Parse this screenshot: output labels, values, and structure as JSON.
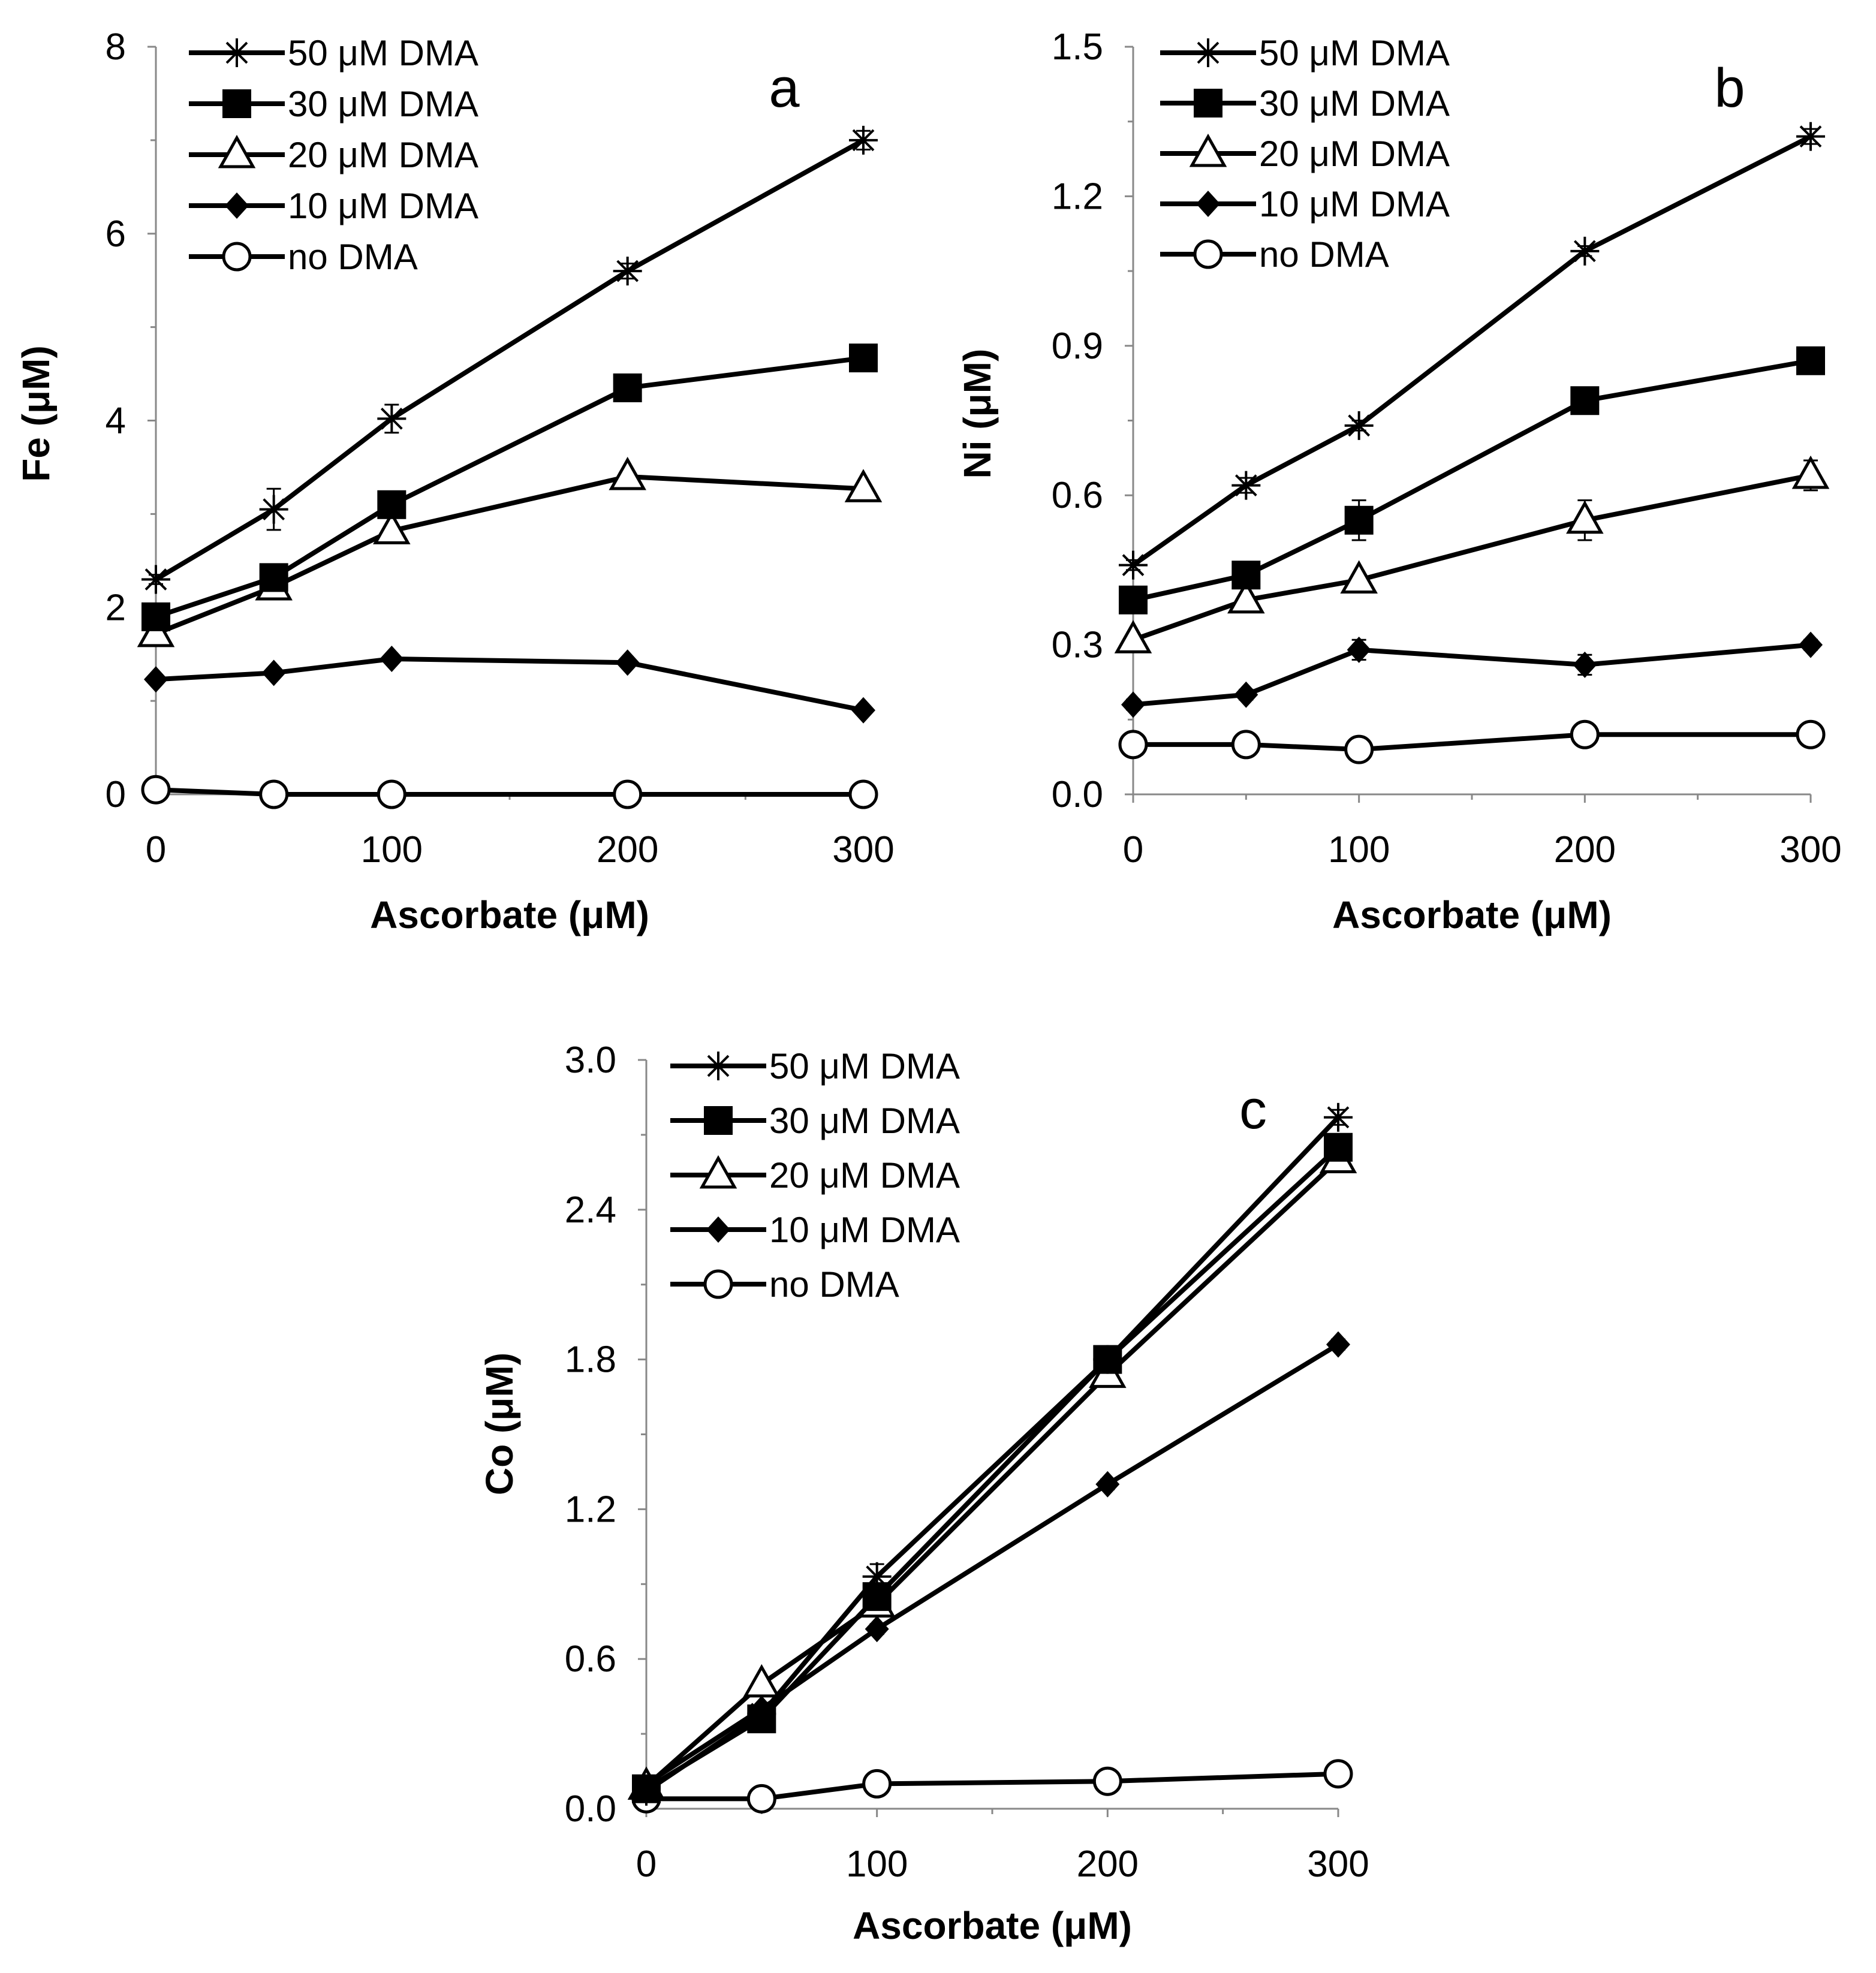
{
  "figure": {
    "marker_color": "#000000"
  },
  "legend_order": [
    "dma50",
    "dma30",
    "dma20",
    "dma10",
    "none"
  ],
  "chart_data": [
    {
      "id": "a",
      "type": "line",
      "panel_label": "a",
      "xlabel": "Ascorbate (μM)",
      "ylabel": "Fe (μM)",
      "xlim": [
        0,
        300
      ],
      "ylim": [
        0,
        8
      ],
      "xticks": [
        0,
        100,
        200,
        300
      ],
      "xtick_labels": [
        "0",
        "100",
        "200",
        "300"
      ],
      "yticks": [
        0,
        2,
        4,
        6,
        8
      ],
      "ytick_labels": [
        "0",
        "2",
        "4",
        "6",
        "8"
      ],
      "legend_position": "top-left",
      "x": [
        0,
        50,
        100,
        200,
        300
      ],
      "series": [
        {
          "key": "dma50",
          "name": "50 μM DMA",
          "marker": "asterisk",
          "values": [
            2.3,
            3.05,
            4.02,
            5.6,
            7.0
          ],
          "errors": [
            0.05,
            0.22,
            0.15,
            0.08,
            0.1
          ]
        },
        {
          "key": "dma30",
          "name": "30 μM DMA",
          "marker": "square",
          "values": [
            1.9,
            2.32,
            3.1,
            4.35,
            4.67
          ],
          "errors": [
            0.05,
            0.05,
            0.08,
            0.06,
            0.05
          ]
        },
        {
          "key": "dma20",
          "name": "20 μM DMA",
          "marker": "triangle",
          "values": [
            1.72,
            2.22,
            2.82,
            3.4,
            3.27
          ],
          "errors": [
            0.05,
            0.05,
            0.05,
            0.05,
            0.05
          ]
        },
        {
          "key": "dma10",
          "name": "10 μM DMA",
          "marker": "diamond",
          "values": [
            1.23,
            1.3,
            1.45,
            1.41,
            0.9
          ],
          "errors": [
            0.03,
            0.03,
            0.03,
            0.03,
            0.03
          ]
        },
        {
          "key": "none",
          "name": "no DMA",
          "marker": "circle",
          "values": [
            0.05,
            0.0,
            0.0,
            0.0,
            0.0
          ],
          "errors": [
            0.02,
            0.01,
            0.01,
            0.01,
            0.01
          ]
        }
      ]
    },
    {
      "id": "b",
      "type": "line",
      "panel_label": "b",
      "xlabel": "Ascorbate (μM)",
      "ylabel": "Ni (μM)",
      "xlim": [
        0,
        300
      ],
      "ylim": [
        0,
        1.5
      ],
      "xticks": [
        0,
        100,
        200,
        300
      ],
      "xtick_labels": [
        "0",
        "100",
        "200",
        "300"
      ],
      "yticks": [
        0,
        0.3,
        0.6,
        0.9,
        1.2,
        1.5
      ],
      "ytick_labels": [
        "0.0",
        "0.3",
        "0.6",
        "0.9",
        "1.2",
        "1.5"
      ],
      "legend_position": "top-left",
      "x": [
        0,
        50,
        100,
        200,
        300
      ],
      "series": [
        {
          "key": "dma50",
          "name": "50 μM DMA",
          "marker": "asterisk",
          "values": [
            0.46,
            0.62,
            0.74,
            1.09,
            1.32
          ],
          "errors": [
            0.01,
            0.015,
            0.01,
            0.01,
            0.015
          ]
        },
        {
          "key": "dma30",
          "name": "30 μM DMA",
          "marker": "square",
          "values": [
            0.39,
            0.44,
            0.55,
            0.79,
            0.87
          ],
          "errors": [
            0.01,
            0.01,
            0.04,
            0.01,
            0.01
          ]
        },
        {
          "key": "dma20",
          "name": "20 μM DMA",
          "marker": "triangle",
          "values": [
            0.31,
            0.39,
            0.43,
            0.55,
            0.64
          ],
          "errors": [
            0.01,
            0.01,
            0.01,
            0.04,
            0.03
          ]
        },
        {
          "key": "dma10",
          "name": "10 μM DMA",
          "marker": "diamond",
          "values": [
            0.18,
            0.2,
            0.29,
            0.26,
            0.3
          ],
          "errors": [
            0.01,
            0.01,
            0.02,
            0.02,
            0.01
          ]
        },
        {
          "key": "none",
          "name": "no DMA",
          "marker": "circle",
          "values": [
            0.1,
            0.1,
            0.09,
            0.12,
            0.12
          ],
          "errors": [
            0.005,
            0.005,
            0.005,
            0.005,
            0.005
          ]
        }
      ]
    },
    {
      "id": "c",
      "type": "line",
      "panel_label": "c",
      "xlabel": "Ascorbate (μM)",
      "ylabel": "Co (μM)",
      "xlim": [
        0,
        300
      ],
      "ylim": [
        0,
        3.0
      ],
      "xticks": [
        0,
        100,
        200,
        300
      ],
      "xtick_labels": [
        "0",
        "100",
        "200",
        "300"
      ],
      "yticks": [
        0,
        0.6,
        1.2,
        1.8,
        2.4,
        3.0
      ],
      "ytick_labels": [
        "0.0",
        "0.6",
        "1.2",
        "1.8",
        "2.4",
        "3.0"
      ],
      "legend_position": "top-left",
      "x": [
        0,
        50,
        100,
        200,
        300
      ],
      "series": [
        {
          "key": "dma50",
          "name": "50 μM DMA",
          "marker": "asterisk",
          "values": [
            0.07,
            0.38,
            0.93,
            1.8,
            2.77
          ],
          "errors": [
            0.01,
            0.02,
            0.05,
            0.02,
            0.03
          ]
        },
        {
          "key": "dma30",
          "name": "30 μM DMA",
          "marker": "square",
          "values": [
            0.08,
            0.36,
            0.85,
            1.8,
            2.65
          ],
          "errors": [
            0.01,
            0.02,
            0.03,
            0.02,
            0.02
          ]
        },
        {
          "key": "dma20",
          "name": "20 μM DMA",
          "marker": "triangle",
          "values": [
            0.09,
            0.5,
            0.82,
            1.74,
            2.6
          ],
          "errors": [
            0.01,
            0.02,
            0.03,
            0.02,
            0.02
          ]
        },
        {
          "key": "dma10",
          "name": "10 μM DMA",
          "marker": "diamond",
          "values": [
            0.1,
            0.4,
            0.72,
            1.3,
            1.86
          ],
          "errors": [
            0.01,
            0.01,
            0.02,
            0.02,
            0.02
          ]
        },
        {
          "key": "none",
          "name": "no DMA",
          "marker": "circle",
          "values": [
            0.04,
            0.04,
            0.1,
            0.11,
            0.14
          ],
          "errors": [
            0.005,
            0.005,
            0.005,
            0.005,
            0.005
          ]
        }
      ]
    }
  ]
}
